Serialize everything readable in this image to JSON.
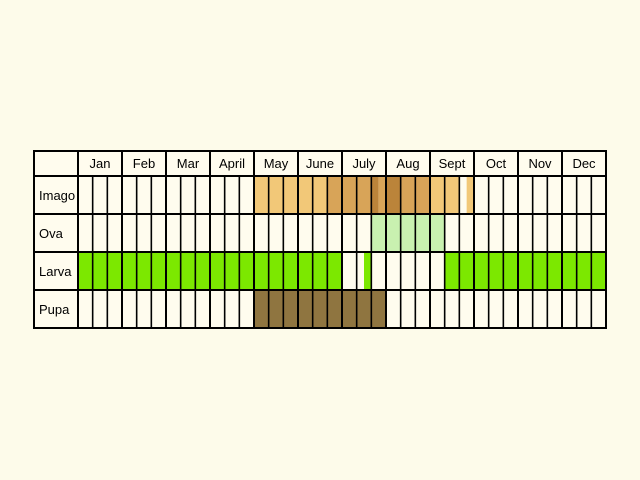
{
  "chart_data": {
    "type": "table",
    "title": "",
    "months": [
      "Jan",
      "Feb",
      "Mar",
      "April",
      "May",
      "June",
      "July",
      "Aug",
      "Sept",
      "Oct",
      "Nov",
      "Dec"
    ],
    "stages": [
      "Imago",
      "Ova",
      "Larva",
      "Pupa"
    ],
    "periods_per_month": 3,
    "colors": {
      "background": "#fdfbea",
      "cell": "#fffcee",
      "grid": "#000000",
      "imago_light": "#f2c878",
      "imago_mid": "#d8a458",
      "imago_dark": "#bb843a",
      "ova": "#c9f1b0",
      "larva": "#7ce800",
      "pupa": "#8f7540"
    },
    "rows": [
      {
        "stage": "Imago",
        "segments": [
          {
            "start": 12.0,
            "end": 13.5,
            "color": "imago_light"
          },
          {
            "start": 13.5,
            "end": 14.0,
            "color": "imago_light"
          },
          {
            "start": 14.0,
            "end": 15.0,
            "color": "imago_light"
          },
          {
            "start": 15.0,
            "end": 16.0,
            "color": "imago_light"
          },
          {
            "start": 16.0,
            "end": 17.0,
            "color": "imago_light"
          },
          {
            "start": 17.0,
            "end": 18.0,
            "color": "imago_mid"
          },
          {
            "start": 18.0,
            "end": 19.0,
            "color": "imago_mid"
          },
          {
            "start": 19.0,
            "end": 20.0,
            "color": "imago_mid"
          },
          {
            "start": 20.0,
            "end": 20.5,
            "color": "imago_dark"
          },
          {
            "start": 20.5,
            "end": 21.0,
            "color": "imago_mid"
          },
          {
            "start": 21.0,
            "end": 22.0,
            "color": "imago_dark"
          },
          {
            "start": 22.0,
            "end": 23.0,
            "color": "imago_mid"
          },
          {
            "start": 23.0,
            "end": 24.0,
            "color": "imago_mid"
          },
          {
            "start": 24.0,
            "end": 25.0,
            "color": "imago_light"
          },
          {
            "start": 25.0,
            "end": 26.0,
            "color": "imago_light"
          },
          {
            "start": 26.5,
            "end": 27.0,
            "color": "imago_light"
          }
        ]
      },
      {
        "stage": "Ova",
        "segments": [
          {
            "start": 20.0,
            "end": 25.0,
            "color": "ova"
          }
        ]
      },
      {
        "stage": "Larva",
        "segments": [
          {
            "start": 0.0,
            "end": 18.0,
            "color": "larva"
          },
          {
            "start": 19.5,
            "end": 20.0,
            "color": "larva"
          },
          {
            "start": 25.0,
            "end": 36.0,
            "color": "larva"
          }
        ]
      },
      {
        "stage": "Pupa",
        "segments": [
          {
            "start": 12.0,
            "end": 21.0,
            "color": "pupa"
          }
        ]
      }
    ]
  }
}
